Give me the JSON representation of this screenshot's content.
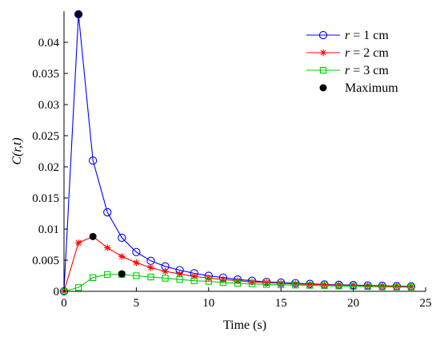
{
  "chart_data": {
    "type": "line",
    "xlabel": "Time (s)",
    "ylabel": "C(r,t)",
    "xlim": [
      0,
      25
    ],
    "ylim": [
      0,
      0.045
    ],
    "xticks": [
      "0",
      "5",
      "10",
      "15",
      "20",
      "25"
    ],
    "yticks": [
      "0",
      "0.005",
      "0.01",
      "0.015",
      "0.02",
      "0.025",
      "0.03",
      "0.035",
      "0.04"
    ],
    "grid": false,
    "legend_position": "top-right",
    "x": [
      0,
      1,
      2,
      3,
      4,
      5,
      6,
      7,
      8,
      9,
      10,
      11,
      12,
      13,
      14,
      15,
      16,
      17,
      18,
      19,
      20,
      21,
      22,
      23,
      24
    ],
    "series": [
      {
        "name": "r = 1 cm",
        "name_var": "r",
        "name_rest": " = 1 cm",
        "color": "#0000ff",
        "marker": "circle",
        "values": [
          0,
          0.0445,
          0.021,
          0.0127,
          0.0086,
          0.0063,
          0.0049,
          0.004,
          0.0034,
          0.0029,
          0.0025,
          0.0022,
          0.0019,
          0.0017,
          0.0015,
          0.0014,
          0.0013,
          0.0012,
          0.0011,
          0.00105,
          0.001,
          0.00095,
          0.0009,
          0.00085,
          0.0008
        ]
      },
      {
        "name": "r = 2 cm",
        "name_var": "r",
        "name_rest": " = 2 cm",
        "color": "#ff0000",
        "marker": "asterisk",
        "values": [
          0,
          0.0078,
          0.0088,
          0.007,
          0.0056,
          0.0046,
          0.0038,
          0.0032,
          0.0028,
          0.0024,
          0.0021,
          0.0019,
          0.0017,
          0.0015,
          0.0014,
          0.0013,
          0.0012,
          0.0011,
          0.00105,
          0.001,
          0.00095,
          0.0009,
          0.00085,
          0.0008,
          0.00075
        ]
      },
      {
        "name": "r = 3 cm",
        "name_var": "r",
        "name_rest": " = 3 cm",
        "color": "#00cc00",
        "marker": "square",
        "values": [
          0,
          0.0006,
          0.0022,
          0.0027,
          0.0027,
          0.0025,
          0.0023,
          0.0021,
          0.0019,
          0.0017,
          0.0016,
          0.0014,
          0.0013,
          0.0012,
          0.0011,
          0.00105,
          0.001,
          0.00095,
          0.0009,
          0.00085,
          0.0008,
          0.00075,
          0.0007,
          0.00068,
          0.00065
        ]
      }
    ],
    "maxima": {
      "name": "Maximum",
      "color": "#000000",
      "points": [
        {
          "x": 1,
          "y": 0.0445
        },
        {
          "x": 2,
          "y": 0.0088
        },
        {
          "x": 4,
          "y": 0.0028
        }
      ]
    }
  }
}
